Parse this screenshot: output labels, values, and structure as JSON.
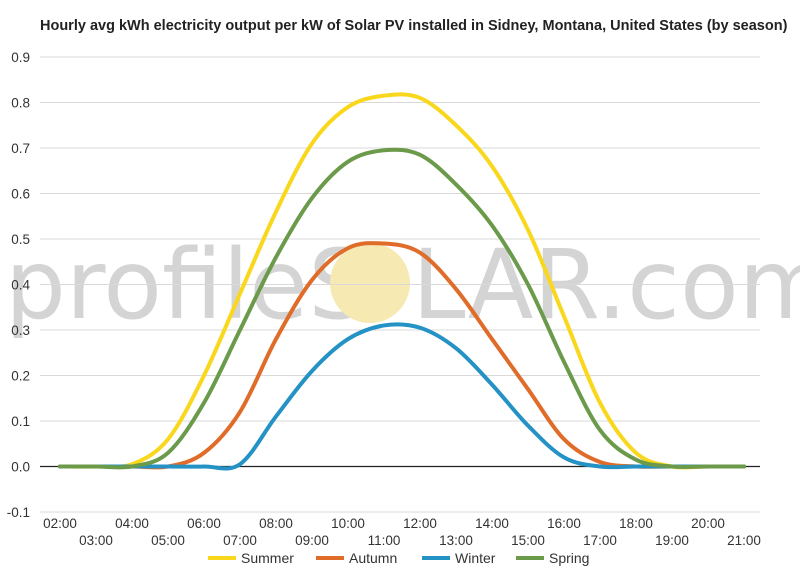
{
  "chart_data": {
    "type": "line",
    "title": "Hourly avg kWh electricity output per kW of Solar PV installed in Sidney, Montana, United States (by season)",
    "xlabel": "",
    "ylabel": "",
    "x": [
      "02:00",
      "03:00",
      "04:00",
      "05:00",
      "06:00",
      "07:00",
      "08:00",
      "09:00",
      "10:00",
      "11:00",
      "12:00",
      "13:00",
      "14:00",
      "15:00",
      "16:00",
      "17:00",
      "18:00",
      "19:00",
      "20:00",
      "21:00"
    ],
    "x_tick_labels_upper": [
      "02:00",
      "04:00",
      "06:00",
      "08:00",
      "10:00",
      "12:00",
      "14:00",
      "16:00",
      "18:00",
      "20:00"
    ],
    "x_tick_labels_lower": [
      "03:00",
      "05:00",
      "07:00",
      "09:00",
      "11:00",
      "13:00",
      "15:00",
      "17:00",
      "19:00",
      "21:00"
    ],
    "ylim": [
      -0.1,
      0.9
    ],
    "y_ticks": [
      "0.9",
      "0.8",
      "0.7",
      "0.6",
      "0.5",
      "0.4",
      "0.3",
      "0.2",
      "0.1",
      "0.0",
      "-0.1"
    ],
    "grid": true,
    "legend_position": "bottom",
    "series": [
      {
        "name": "Summer",
        "color": "#f9d71c",
        "values": [
          0,
          0,
          0.005,
          0.06,
          0.2,
          0.38,
          0.56,
          0.71,
          0.79,
          0.815,
          0.81,
          0.75,
          0.66,
          0.52,
          0.33,
          0.14,
          0.03,
          0,
          0,
          0
        ]
      },
      {
        "name": "Autumn",
        "color": "#e06c2a",
        "values": [
          0,
          0,
          0,
          0,
          0.03,
          0.12,
          0.28,
          0.41,
          0.48,
          0.49,
          0.47,
          0.39,
          0.28,
          0.17,
          0.06,
          0.01,
          0,
          0,
          0,
          0
        ]
      },
      {
        "name": "Winter",
        "color": "#2492c4",
        "values": [
          0,
          0,
          0,
          0,
          0,
          0.005,
          0.11,
          0.21,
          0.28,
          0.31,
          0.305,
          0.26,
          0.18,
          0.09,
          0.02,
          0,
          0,
          0,
          0,
          0
        ]
      },
      {
        "name": "Spring",
        "color": "#6b9a4a",
        "values": [
          0,
          0,
          0,
          0.03,
          0.14,
          0.3,
          0.46,
          0.59,
          0.67,
          0.695,
          0.685,
          0.62,
          0.53,
          0.4,
          0.23,
          0.08,
          0.015,
          0,
          0,
          0
        ]
      }
    ]
  },
  "watermark": {
    "text_left": "profileS",
    "text_right": "LAR.com",
    "sun_color": "#f6e9b2"
  }
}
